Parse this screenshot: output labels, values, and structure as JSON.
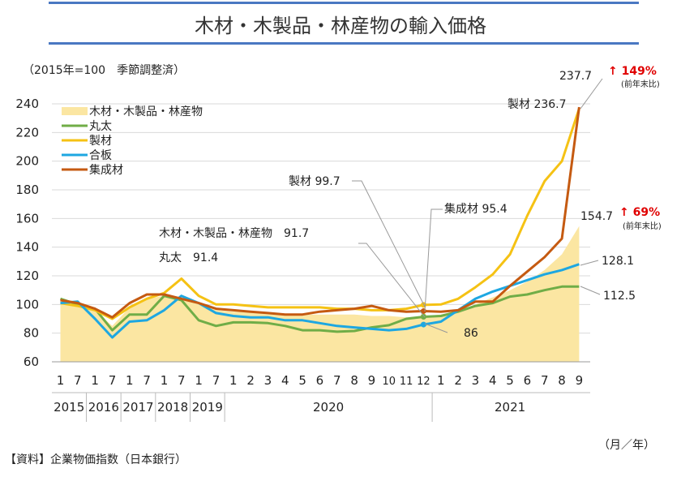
{
  "title": "木材・木製品・林産物の輸入価格",
  "unit_note": "（2015年=100　季節調整済）",
  "source": "【資料】企業物価指数（日本銀行）",
  "x_unit": "（月／年）",
  "chart_data": {
    "type": "line",
    "ylim": [
      60,
      240
    ],
    "y_ticks": [
      60,
      80,
      100,
      120,
      140,
      160,
      180,
      200,
      220,
      240
    ],
    "x_tick_labels": [
      "1",
      "7",
      "1",
      "7",
      "1",
      "7",
      "1",
      "7",
      "1",
      "7",
      "1",
      "2",
      "3",
      "4",
      "5",
      "6",
      "7",
      "8",
      "9",
      "10",
      "11",
      "12",
      "1",
      "2",
      "3",
      "4",
      "5",
      "6",
      "7",
      "8",
      "9"
    ],
    "year_groups": [
      {
        "label": "2015",
        "span": 2
      },
      {
        "label": "2016",
        "span": 2
      },
      {
        "label": "2017",
        "span": 2
      },
      {
        "label": "2018",
        "span": 2
      },
      {
        "label": "2019",
        "span": 2
      },
      {
        "label": "2020",
        "span": 12
      },
      {
        "label": "2021",
        "span": 9
      }
    ],
    "series": [
      {
        "name": "木材・木製品・林産物",
        "kind": "area",
        "color": "#fbe6a2",
        "values": [
          102,
          100,
          96,
          85,
          98,
          104,
          106,
          104,
          100,
          96,
          95,
          95,
          94,
          93,
          93,
          93,
          93,
          93,
          92,
          92,
          91,
          91.7,
          93,
          95,
          100,
          105,
          110,
          116,
          124,
          135,
          154.7
        ]
      },
      {
        "name": "丸太",
        "color": "#70ad47",
        "values": [
          104,
          100,
          97,
          82,
          93,
          93,
          106,
          103,
          89,
          85,
          87.5,
          87.5,
          87,
          85,
          82,
          82,
          81,
          81.5,
          84,
          85.5,
          90,
          91.4,
          92,
          95,
          99,
          101,
          105.5,
          107,
          110,
          112.5,
          112.5
        ]
      },
      {
        "name": "製材",
        "color": "#f5c214",
        "values": [
          101,
          99,
          96,
          90,
          98,
          104,
          108,
          118,
          106,
          100,
          100,
          99,
          98,
          98,
          98,
          98,
          97,
          97,
          96,
          96,
          97,
          99.7,
          100,
          104,
          112,
          121,
          135,
          162,
          186,
          200,
          236.7
        ]
      },
      {
        "name": "合板",
        "color": "#1ea7e1",
        "values": [
          101,
          102,
          90,
          77,
          88,
          89,
          96,
          106,
          101,
          94,
          92,
          91,
          91,
          89,
          89,
          87,
          85,
          84,
          83,
          82,
          83,
          86,
          88,
          96,
          104,
          109,
          113,
          117,
          121,
          124,
          128.1
        ]
      },
      {
        "name": "集成材",
        "color": "#c55a11",
        "values": [
          103,
          101,
          97,
          91,
          101,
          107,
          107,
          104,
          101,
          97,
          96,
          95,
          94,
          93,
          93,
          95,
          96,
          97,
          99,
          96,
          95,
          95.4,
          95,
          96,
          102,
          102,
          113,
          123,
          133,
          146,
          237.7
        ]
      }
    ]
  },
  "annotations": {
    "seizai_peak": "237.7",
    "seizai_peak_change": "↑ 149%",
    "seizai_peak_change_note": "(前年末比)",
    "seizai_end": "製材  236.7",
    "mokuzai_end": "154.7",
    "mokuzai_end_change": "↑ 69%",
    "mokuzai_end_change_note": "(前年末比)",
    "goban_end": "128.1",
    "maruta_end": "112.5",
    "seizai_dec": "製材 99.7",
    "shuseizai_dec": "集成材 95.4",
    "mokuzai_dec": "木材・木製品・林産物　91.7",
    "maruta_dec": "丸太　91.4",
    "goban_dec": "86"
  }
}
